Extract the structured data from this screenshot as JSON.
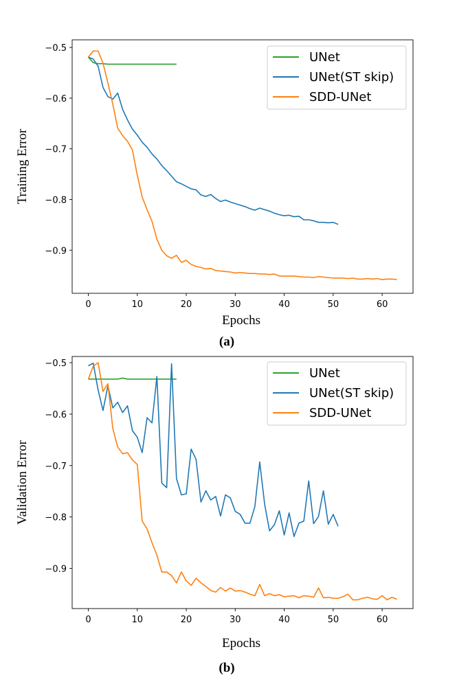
{
  "colors": {
    "UNet": "#2ca02c",
    "UNet(ST skip)": "#1f77b4",
    "SDD-UNet": "#ff7f0e"
  },
  "chart_data": [
    {
      "type": "line",
      "caption": "(a)",
      "xlabel": "Epochs",
      "ylabel": "Training Error",
      "xlim": [
        -3.3,
        66.3
      ],
      "ylim": [
        -0.985,
        -0.485
      ],
      "xticks": [
        0,
        10,
        20,
        30,
        40,
        50,
        60
      ],
      "yticks": [
        -0.5,
        -0.6,
        -0.7,
        -0.8,
        -0.9
      ],
      "legend_position": "top-right",
      "series": [
        {
          "name": "UNet",
          "x": [
            0,
            1,
            2,
            3,
            4,
            5,
            6,
            7,
            8,
            9,
            10,
            11,
            12,
            13,
            14,
            15,
            16,
            17,
            18
          ],
          "values": [
            -0.519,
            -0.53,
            -0.532,
            -0.532,
            -0.533,
            -0.533,
            -0.533,
            -0.533,
            -0.533,
            -0.533,
            -0.533,
            -0.533,
            -0.533,
            -0.533,
            -0.533,
            -0.533,
            -0.533,
            -0.533,
            -0.533
          ]
        },
        {
          "name": "UNet(ST skip)",
          "x": [
            0,
            1,
            2,
            3,
            4,
            5,
            6,
            7,
            8,
            9,
            10,
            11,
            12,
            13,
            14,
            15,
            16,
            17,
            18,
            19,
            20,
            21,
            22,
            23,
            24,
            25,
            26,
            27,
            28,
            29,
            30,
            31,
            32,
            33,
            34,
            35,
            36,
            37,
            38,
            39,
            40,
            41,
            42,
            43,
            44,
            45,
            46,
            47,
            48,
            49,
            50,
            51
          ],
          "values": [
            -0.519,
            -0.523,
            -0.537,
            -0.579,
            -0.597,
            -0.602,
            -0.59,
            -0.622,
            -0.643,
            -0.661,
            -0.673,
            -0.687,
            -0.697,
            -0.71,
            -0.72,
            -0.733,
            -0.743,
            -0.754,
            -0.765,
            -0.769,
            -0.774,
            -0.779,
            -0.781,
            -0.791,
            -0.794,
            -0.79,
            -0.798,
            -0.804,
            -0.801,
            -0.805,
            -0.808,
            -0.811,
            -0.814,
            -0.818,
            -0.821,
            -0.817,
            -0.82,
            -0.823,
            -0.827,
            -0.83,
            -0.832,
            -0.831,
            -0.834,
            -0.833,
            -0.84,
            -0.84,
            -0.842,
            -0.845,
            -0.845,
            -0.846,
            -0.845,
            -0.849
          ]
        },
        {
          "name": "SDD-UNet",
          "x": [
            0,
            1,
            2,
            3,
            4,
            5,
            6,
            7,
            8,
            9,
            10,
            11,
            12,
            13,
            14,
            15,
            16,
            17,
            18,
            19,
            20,
            21,
            22,
            23,
            24,
            25,
            26,
            27,
            28,
            29,
            30,
            31,
            32,
            33,
            34,
            35,
            36,
            37,
            38,
            39,
            40,
            41,
            42,
            43,
            44,
            45,
            46,
            47,
            48,
            49,
            50,
            51,
            52,
            53,
            54,
            55,
            56,
            57,
            58,
            59,
            60,
            61,
            62,
            63
          ],
          "values": [
            -0.519,
            -0.507,
            -0.507,
            -0.531,
            -0.57,
            -0.612,
            -0.659,
            -0.674,
            -0.685,
            -0.702,
            -0.752,
            -0.795,
            -0.82,
            -0.843,
            -0.878,
            -0.9,
            -0.911,
            -0.916,
            -0.91,
            -0.924,
            -0.92,
            -0.928,
            -0.932,
            -0.934,
            -0.937,
            -0.936,
            -0.94,
            -0.941,
            -0.942,
            -0.943,
            -0.945,
            -0.944,
            -0.945,
            -0.946,
            -0.946,
            -0.947,
            -0.947,
            -0.948,
            -0.947,
            -0.951,
            -0.951,
            -0.951,
            -0.951,
            -0.952,
            -0.953,
            -0.953,
            -0.954,
            -0.952,
            -0.953,
            -0.954,
            -0.955,
            -0.955,
            -0.955,
            -0.956,
            -0.955,
            -0.957,
            -0.957,
            -0.956,
            -0.957,
            -0.956,
            -0.958,
            -0.957,
            -0.957,
            -0.958
          ]
        }
      ]
    },
    {
      "type": "line",
      "caption": "(b)",
      "xlabel": "Epochs",
      "ylabel": "Validation Error",
      "xlim": [
        -3.3,
        66.3
      ],
      "ylim": [
        -0.978,
        -0.488
      ],
      "xticks": [
        0,
        10,
        20,
        30,
        40,
        50,
        60
      ],
      "yticks": [
        -0.5,
        -0.6,
        -0.7,
        -0.8,
        -0.9
      ],
      "legend_position": "top-right",
      "series": [
        {
          "name": "UNet",
          "x": [
            0,
            1,
            2,
            3,
            4,
            5,
            6,
            7,
            8,
            9,
            10,
            11,
            12,
            13,
            14,
            15,
            16,
            17,
            18
          ],
          "values": [
            -0.532,
            -0.532,
            -0.532,
            -0.532,
            -0.532,
            -0.532,
            -0.532,
            -0.53,
            -0.532,
            -0.532,
            -0.532,
            -0.532,
            -0.532,
            -0.532,
            -0.532,
            -0.532,
            -0.532,
            -0.532,
            -0.532
          ]
        },
        {
          "name": "UNet(ST skip)",
          "x": [
            0,
            1,
            2,
            3,
            4,
            5,
            6,
            7,
            8,
            9,
            10,
            11,
            12,
            13,
            14,
            15,
            16,
            17,
            18,
            19,
            20,
            21,
            22,
            23,
            24,
            25,
            26,
            27,
            28,
            29,
            30,
            31,
            32,
            33,
            34,
            35,
            36,
            37,
            38,
            39,
            40,
            41,
            42,
            43,
            44,
            45,
            46,
            47,
            48,
            49,
            50,
            51
          ],
          "values": [
            -0.506,
            -0.501,
            -0.553,
            -0.593,
            -0.545,
            -0.588,
            -0.577,
            -0.597,
            -0.584,
            -0.632,
            -0.645,
            -0.675,
            -0.607,
            -0.617,
            -0.527,
            -0.734,
            -0.743,
            -0.502,
            -0.725,
            -0.757,
            -0.755,
            -0.668,
            -0.688,
            -0.771,
            -0.749,
            -0.767,
            -0.76,
            -0.798,
            -0.757,
            -0.763,
            -0.789,
            -0.795,
            -0.812,
            -0.812,
            -0.78,
            -0.693,
            -0.775,
            -0.827,
            -0.815,
            -0.788,
            -0.835,
            -0.792,
            -0.838,
            -0.812,
            -0.808,
            -0.73,
            -0.813,
            -0.799,
            -0.749,
            -0.814,
            -0.795,
            -0.818
          ]
        },
        {
          "name": "SDD-UNet",
          "x": [
            0,
            1,
            2,
            3,
            4,
            5,
            6,
            7,
            8,
            9,
            10,
            11,
            12,
            13,
            14,
            15,
            16,
            17,
            18,
            19,
            20,
            21,
            22,
            23,
            24,
            25,
            26,
            27,
            28,
            29,
            30,
            31,
            32,
            33,
            34,
            35,
            36,
            37,
            38,
            39,
            40,
            41,
            42,
            43,
            44,
            45,
            46,
            47,
            48,
            49,
            50,
            51,
            52,
            53,
            54,
            55,
            56,
            57,
            58,
            59,
            60,
            61,
            62,
            63
          ],
          "values": [
            -0.532,
            -0.507,
            -0.5,
            -0.556,
            -0.541,
            -0.628,
            -0.664,
            -0.677,
            -0.675,
            -0.689,
            -0.698,
            -0.808,
            -0.823,
            -0.85,
            -0.874,
            -0.907,
            -0.907,
            -0.914,
            -0.928,
            -0.907,
            -0.924,
            -0.933,
            -0.919,
            -0.928,
            -0.935,
            -0.943,
            -0.946,
            -0.937,
            -0.944,
            -0.938,
            -0.944,
            -0.943,
            -0.946,
            -0.95,
            -0.953,
            -0.931,
            -0.953,
            -0.949,
            -0.953,
            -0.951,
            -0.955,
            -0.954,
            -0.953,
            -0.957,
            -0.953,
            -0.954,
            -0.956,
            -0.938,
            -0.957,
            -0.956,
            -0.958,
            -0.958,
            -0.955,
            -0.95,
            -0.961,
            -0.961,
            -0.958,
            -0.956,
            -0.959,
            -0.96,
            -0.953,
            -0.961,
            -0.956,
            -0.96
          ]
        }
      ]
    }
  ]
}
